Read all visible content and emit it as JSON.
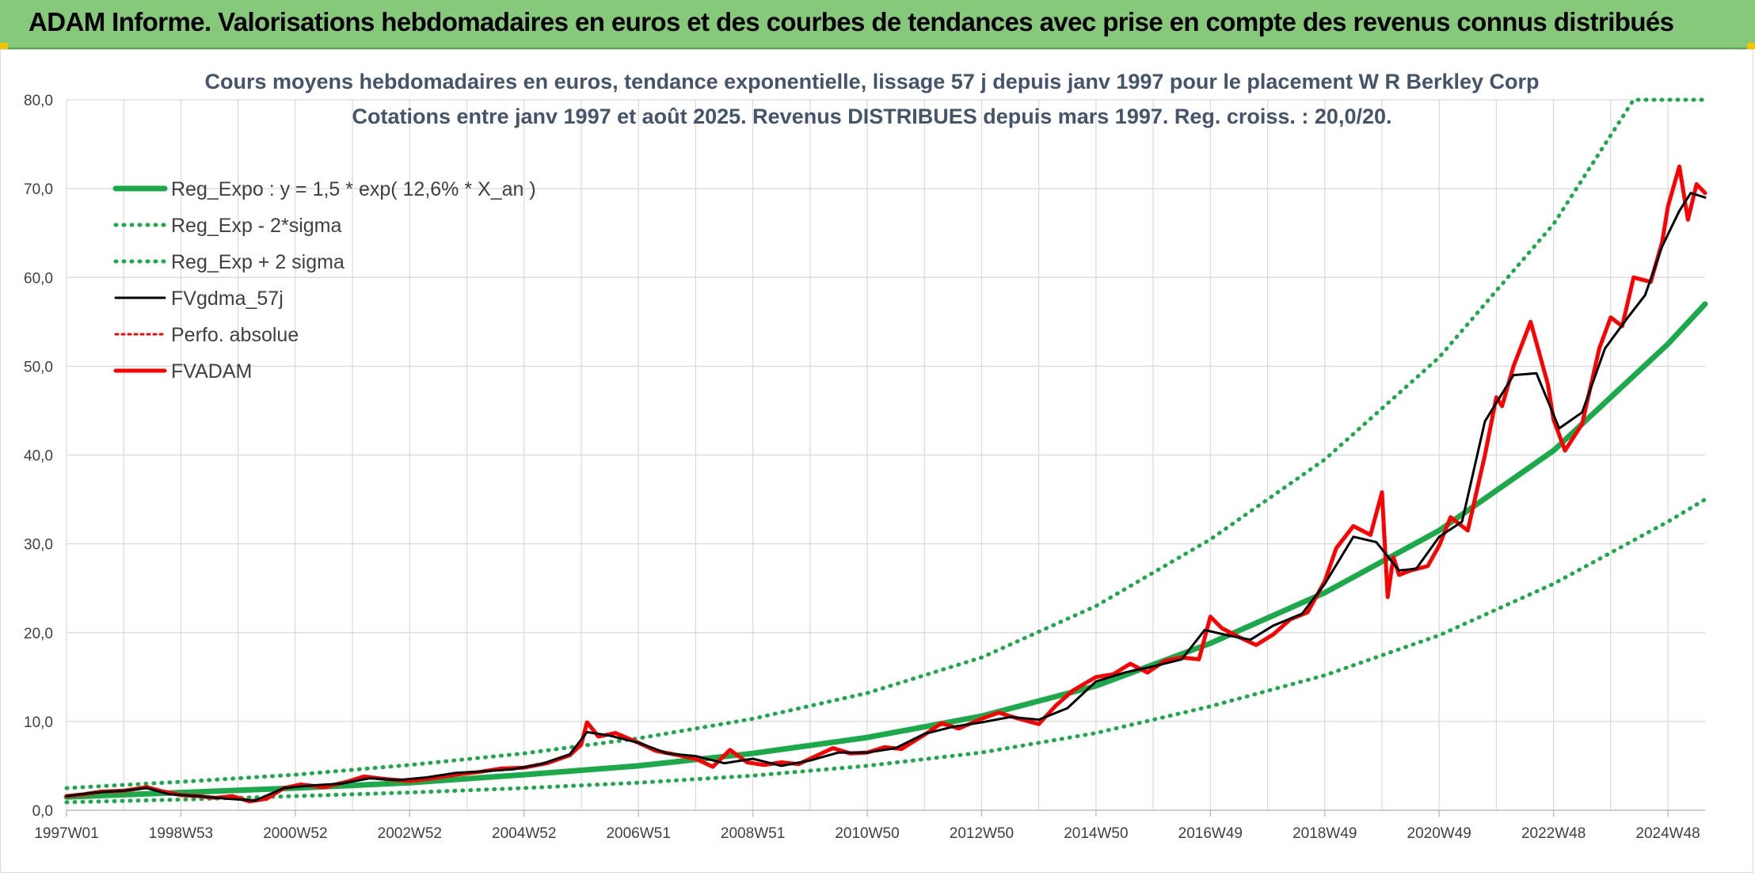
{
  "header": {
    "title": "ADAM Informe. Valorisations hebdomadaires en euros et des courbes de tendances avec prise en compte des revenus connus distribués"
  },
  "colors": {
    "header_bg": "#86c97a",
    "regression": "#1aaa4a",
    "fv_black": "#000000",
    "fvadam_red": "#ff0000",
    "grid": "#d9d9d9"
  },
  "chart_data": {
    "type": "line",
    "title": "Cours moyens hebdomadaires en euros, tendance exponentielle, lissage 57 j depuis janv 1997 pour le placement W R Berkley Corp",
    "subtitle": "Cotations entre janv 1997 et août 2025. Revenus DISTRIBUES depuis mars 1997. Reg. croiss. : 20,0/20.",
    "xlabel": "",
    "ylabel": "",
    "ylim": [
      0,
      80
    ],
    "xlim": [
      1997.0,
      2025.65
    ],
    "grid": true,
    "legend_position": "top-left",
    "y_ticks": [
      "0,0",
      "10,0",
      "20,0",
      "30,0",
      "40,0",
      "50,0",
      "60,0",
      "70,0",
      "80,0"
    ],
    "x_ticks": [
      {
        "x": 1997.0,
        "label": "1997W01"
      },
      {
        "x": 1999.0,
        "label": "1998W53"
      },
      {
        "x": 2001.0,
        "label": "2000W52"
      },
      {
        "x": 2003.0,
        "label": "2002W52"
      },
      {
        "x": 2005.0,
        "label": "2004W52"
      },
      {
        "x": 2007.0,
        "label": "2006W51"
      },
      {
        "x": 2009.0,
        "label": "2008W51"
      },
      {
        "x": 2011.0,
        "label": "2010W50"
      },
      {
        "x": 2013.0,
        "label": "2012W50"
      },
      {
        "x": 2015.0,
        "label": "2014W50"
      },
      {
        "x": 2017.0,
        "label": "2016W49"
      },
      {
        "x": 2019.0,
        "label": "2018W49"
      },
      {
        "x": 2021.0,
        "label": "2020W49"
      },
      {
        "x": 2023.0,
        "label": "2022W48"
      },
      {
        "x": 2025.0,
        "label": "2024W48"
      }
    ],
    "series": [
      {
        "name": "Reg_Expo : y = 1,5 * exp( 12,6% *  X_an )",
        "style": "solid",
        "color": "#1aaa4a",
        "x": [
          1997.0,
          1999.0,
          2001.0,
          2003.0,
          2005.0,
          2007.0,
          2009.0,
          2011.0,
          2013.0,
          2015.0,
          2017.0,
          2019.0,
          2021.0,
          2023.0,
          2025.0,
          2025.65
        ],
        "values": [
          1.5,
          2.0,
          2.5,
          3.1,
          4.0,
          5.0,
          6.4,
          8.2,
          10.6,
          14.0,
          18.8,
          24.5,
          31.5,
          40.5,
          52.5,
          57.0
        ]
      },
      {
        "name": "Reg_Exp - 2*sigma",
        "style": "dotted",
        "color": "#1aaa4a",
        "x": [
          1997.0,
          1999.0,
          2001.0,
          2003.0,
          2005.0,
          2007.0,
          2009.0,
          2011.0,
          2013.0,
          2015.0,
          2017.0,
          2019.0,
          2021.0,
          2023.0,
          2025.0,
          2025.65
        ],
        "values": [
          0.9,
          1.2,
          1.6,
          2.0,
          2.5,
          3.1,
          3.9,
          5.0,
          6.5,
          8.7,
          11.7,
          15.2,
          19.7,
          25.5,
          32.5,
          35.0
        ]
      },
      {
        "name": "Reg_Exp + 2 sigma",
        "style": "dotted",
        "color": "#1aaa4a",
        "x": [
          1997.0,
          1999.0,
          2001.0,
          2003.0,
          2005.0,
          2007.0,
          2009.0,
          2011.0,
          2013.0,
          2015.0,
          2017.0,
          2019.0,
          2021.0,
          2023.0,
          2024.4,
          2025.65
        ],
        "values": [
          2.5,
          3.2,
          4.0,
          5.1,
          6.4,
          8.1,
          10.3,
          13.2,
          17.2,
          23.0,
          30.5,
          39.5,
          51.0,
          66.0,
          80.0,
          80.0
        ]
      },
      {
        "name": "FVgdma_57j",
        "style": "solid",
        "color": "#000000",
        "x": [
          1997.0,
          1997.5,
          1998.0,
          1998.4,
          1998.8,
          1999.3,
          1999.8,
          2000.3,
          2000.8,
          2001.3,
          2001.8,
          2002.3,
          2002.8,
          2003.3,
          2003.8,
          2004.3,
          2004.8,
          2005.3,
          2005.8,
          2006.1,
          2006.5,
          2007.0,
          2007.5,
          2008.0,
          2008.5,
          2009.0,
          2009.5,
          2010.0,
          2010.5,
          2011.0,
          2011.5,
          2012.0,
          2012.5,
          2013.0,
          2013.5,
          2014.0,
          2014.5,
          2015.0,
          2015.5,
          2016.0,
          2016.5,
          2016.9,
          2017.3,
          2017.7,
          2018.1,
          2018.6,
          2019.0,
          2019.5,
          2019.9,
          2020.3,
          2020.6,
          2021.0,
          2021.4,
          2021.8,
          2022.3,
          2022.7,
          2023.1,
          2023.5,
          2023.9,
          2024.3,
          2024.6,
          2024.9,
          2025.2,
          2025.4,
          2025.65
        ],
        "values": [
          1.6,
          2.0,
          2.2,
          2.5,
          1.8,
          1.6,
          1.3,
          1.1,
          2.5,
          2.8,
          3.0,
          3.6,
          3.4,
          3.7,
          4.2,
          4.4,
          4.6,
          5.2,
          6.3,
          8.8,
          8.4,
          7.6,
          6.4,
          6.1,
          5.3,
          5.8,
          5.0,
          5.6,
          6.5,
          6.5,
          7.0,
          8.6,
          9.4,
          9.9,
          10.5,
          10.2,
          11.5,
          14.5,
          15.5,
          16.2,
          17.0,
          20.3,
          19.7,
          19.2,
          20.8,
          22.1,
          25.5,
          30.8,
          30.2,
          27.0,
          27.2,
          30.8,
          32.5,
          43.8,
          49.0,
          49.2,
          43.0,
          44.8,
          52.0,
          55.5,
          58.0,
          63.5,
          67.5,
          69.5,
          69.0
        ]
      },
      {
        "name": "Perfo. absolue",
        "style": "dotted",
        "color": "#ff0000",
        "x": [],
        "values": []
      },
      {
        "name": "FVADAM",
        "style": "solid",
        "color": "#ff0000",
        "x": [
          1997.0,
          1997.3,
          1997.6,
          1998.0,
          1998.2,
          1998.4,
          1998.7,
          1999.0,
          1999.3,
          1999.6,
          1999.9,
          2000.2,
          2000.5,
          2000.8,
          2001.1,
          2001.5,
          2001.9,
          2002.2,
          2002.6,
          2003.0,
          2003.4,
          2003.8,
          2004.2,
          2004.6,
          2005.0,
          2005.4,
          2005.8,
          2006.0,
          2006.1,
          2006.3,
          2006.6,
          2007.0,
          2007.3,
          2007.7,
          2008.0,
          2008.3,
          2008.6,
          2008.9,
          2009.2,
          2009.5,
          2009.8,
          2010.1,
          2010.4,
          2010.7,
          2011.0,
          2011.3,
          2011.6,
          2012.0,
          2012.3,
          2012.6,
          2013.0,
          2013.3,
          2013.6,
          2014.0,
          2014.3,
          2014.6,
          2015.0,
          2015.3,
          2015.6,
          2015.9,
          2016.2,
          2016.5,
          2016.8,
          2017.0,
          2017.2,
          2017.5,
          2017.8,
          2018.1,
          2018.4,
          2018.7,
          2019.0,
          2019.2,
          2019.5,
          2019.8,
          2020.0,
          2020.1,
          2020.2,
          2020.3,
          2020.5,
          2020.8,
          2021.0,
          2021.2,
          2021.5,
          2021.8,
          2022.0,
          2022.1,
          2022.3,
          2022.6,
          2022.9,
          2023.0,
          2023.2,
          2023.5,
          2023.8,
          2024.0,
          2024.2,
          2024.4,
          2024.7,
          2024.9,
          2025.0,
          2025.2,
          2025.35,
          2025.5,
          2025.65
        ],
        "values": [
          1.6,
          1.8,
          2.1,
          2.2,
          2.4,
          2.6,
          2.1,
          1.7,
          1.6,
          1.4,
          1.6,
          1.0,
          1.3,
          2.5,
          2.9,
          2.6,
          3.2,
          3.8,
          3.5,
          3.3,
          3.6,
          4.0,
          4.3,
          4.7,
          4.8,
          5.3,
          6.2,
          7.4,
          9.9,
          8.3,
          8.7,
          7.6,
          6.7,
          6.2,
          5.8,
          4.9,
          6.8,
          5.4,
          5.1,
          5.4,
          5.2,
          6.1,
          7.0,
          6.4,
          6.5,
          7.1,
          6.9,
          8.5,
          9.8,
          9.2,
          10.3,
          11.0,
          10.4,
          9.7,
          11.8,
          13.5,
          15.0,
          15.3,
          16.5,
          15.5,
          16.8,
          17.2,
          17.0,
          21.8,
          20.5,
          19.5,
          18.6,
          19.8,
          21.5,
          22.3,
          25.8,
          29.5,
          32.0,
          31.0,
          35.8,
          24.0,
          28.5,
          26.5,
          27.0,
          27.5,
          29.8,
          33.0,
          31.5,
          40.0,
          46.5,
          45.5,
          50.0,
          55.0,
          48.0,
          44.0,
          40.5,
          43.5,
          52.0,
          55.5,
          54.5,
          60.0,
          59.5,
          64.0,
          68.0,
          72.5,
          66.5,
          70.5,
          69.5
        ]
      }
    ]
  }
}
